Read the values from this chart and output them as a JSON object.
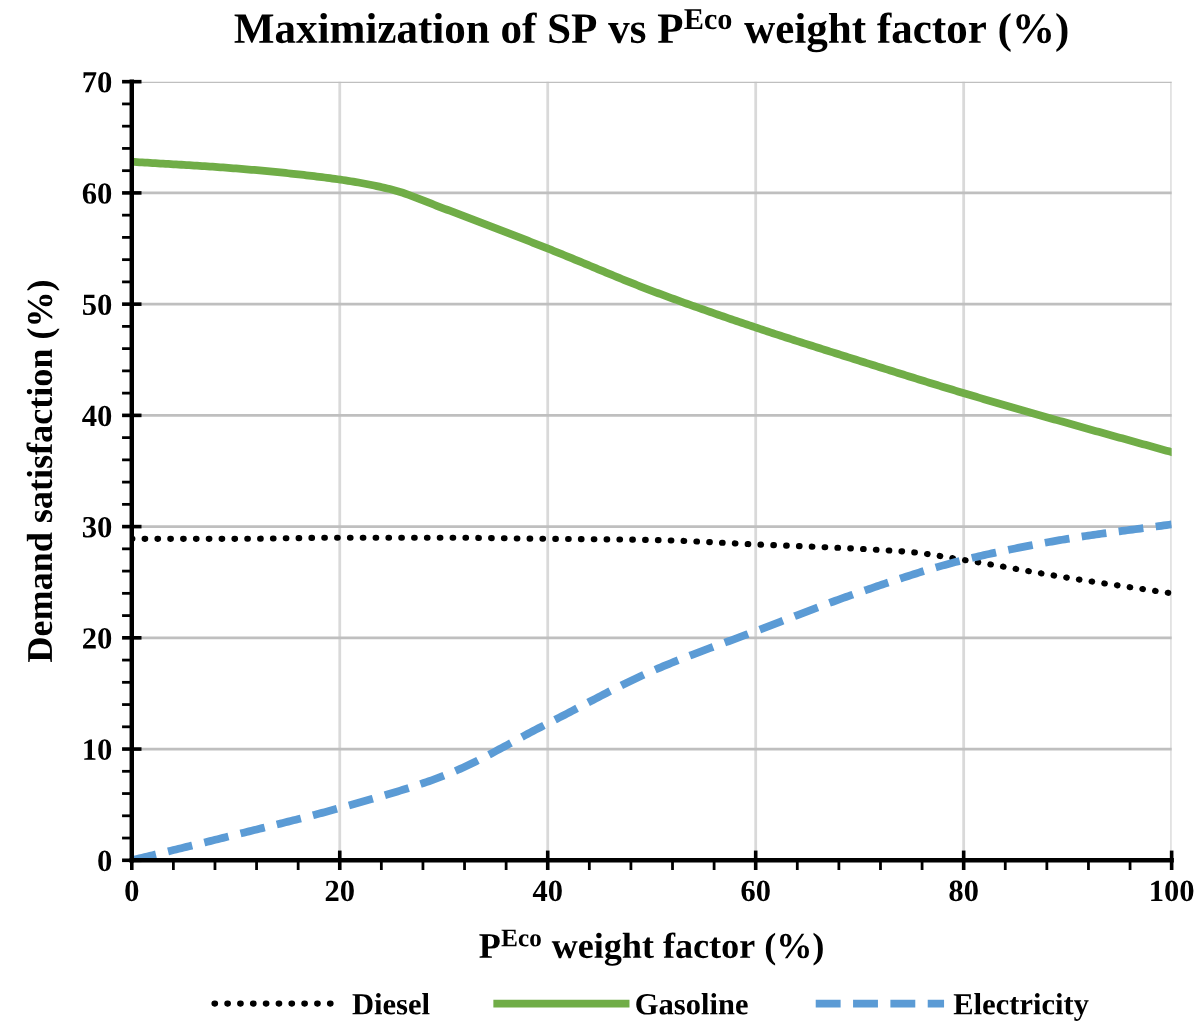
{
  "chart_data": {
    "type": "line",
    "title": "Maximization of SP vs P$^{Eco}$ weight factor (%)",
    "xlabel": "P$^{Eco}$ weight factor (%)",
    "ylabel": "Demand satisfaction (%)",
    "xlim": [
      0,
      100
    ],
    "xticks": [
      0,
      20,
      40,
      60,
      80,
      100
    ],
    "ylim": [
      0,
      70
    ],
    "yticks": [
      0,
      10,
      20,
      30,
      40,
      50,
      60,
      70
    ],
    "grid": true,
    "legend": "bottom",
    "marker": "none",
    "series": [
      {
        "name": "Diesel",
        "color": "#000000",
        "line_style": "dotted",
        "x": [
          0,
          10,
          20,
          30,
          40,
          50,
          60,
          70,
          75,
          80,
          90,
          100
        ],
        "values": [
          28.9,
          28.9,
          29.0,
          29.0,
          28.9,
          28.8,
          28.4,
          28.0,
          27.7,
          27.0,
          25.4,
          24.0
        ]
      },
      {
        "name": "Gasoline",
        "color": "#70ad47",
        "line_style": "solid",
        "x": [
          0,
          10,
          20,
          25,
          30,
          40,
          50,
          60,
          70,
          80,
          90,
          100
        ],
        "values": [
          62.8,
          62.2,
          61.2,
          60.3,
          58.6,
          55.0,
          51.2,
          47.9,
          44.9,
          42.0,
          39.3,
          36.7
        ]
      },
      {
        "name": "Electricity",
        "color": "#5b9bd5",
        "line_style": "dashed",
        "x": [
          0,
          10,
          20,
          30,
          40,
          50,
          60,
          70,
          80,
          90,
          100
        ],
        "values": [
          0,
          2.3,
          4.7,
          7.6,
          12.3,
          17.0,
          20.6,
          24.1,
          27.0,
          28.9,
          30.2
        ]
      }
    ]
  }
}
